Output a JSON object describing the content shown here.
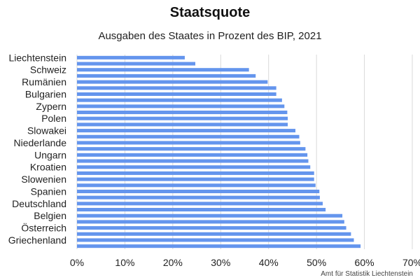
{
  "chart_data": {
    "type": "bar",
    "orientation": "horizontal",
    "title": "Staatsquote",
    "subtitle": "Ausgaben des Staates in Prozent des BIP, 2021",
    "xlabel": "",
    "ylabel": "",
    "xlim": [
      0,
      0.7
    ],
    "x_ticks": [
      0,
      0.1,
      0.2,
      0.3,
      0.4,
      0.5,
      0.6,
      0.7
    ],
    "x_tick_labels": [
      "0%",
      "10%",
      "20%",
      "30%",
      "40%",
      "50%",
      "60%",
      "70%"
    ],
    "grid": "vertical",
    "legend": "none",
    "bar_color": "#6495ED",
    "categories": [
      "Liechtenstein",
      "",
      "Schweiz",
      "",
      "Rumänien",
      "",
      "Bulgarien",
      "",
      "Zypern",
      "",
      "Polen",
      "",
      "Slowakei",
      "",
      "Niederlande",
      "",
      "Ungarn",
      "",
      "Kroatien",
      "",
      "Slowenien",
      "",
      "Spanien",
      "",
      "Deutschland",
      "",
      "Belgien",
      "",
      "Österreich",
      "",
      "Griechenland",
      ""
    ],
    "values": [
      0.225,
      0.247,
      0.359,
      0.373,
      0.398,
      0.416,
      0.416,
      0.428,
      0.433,
      0.439,
      0.44,
      0.44,
      0.456,
      0.464,
      0.466,
      0.477,
      0.481,
      0.483,
      0.487,
      0.495,
      0.495,
      0.498,
      0.506,
      0.507,
      0.513,
      0.519,
      0.554,
      0.558,
      0.562,
      0.572,
      0.578,
      0.592
    ],
    "source": "Amt für Statistik Liechtenstein"
  }
}
